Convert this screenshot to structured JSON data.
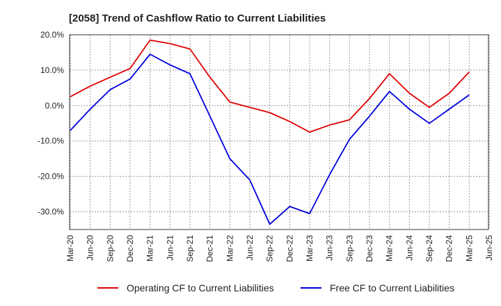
{
  "chart_data": {
    "type": "line",
    "title": "[2058]  Trend of Cashflow Ratio to Current Liabilities",
    "xlabel": "",
    "ylabel": "",
    "ylim": [
      -35,
      20
    ],
    "y_ticks": [
      20,
      10,
      0,
      -10,
      -20,
      -30
    ],
    "y_tick_labels": [
      "20.0%",
      "10.0%",
      "0.0%",
      "-10.0%",
      "-20.0%",
      "-30.0%"
    ],
    "x_tick_labels": [
      "Mar-20",
      "Jun-20",
      "Sep-20",
      "Dec-20",
      "Mar-21",
      "Jun-21",
      "Sep-21",
      "Dec-21",
      "Mar-22",
      "Jun-22",
      "Sep-22",
      "Dec-22",
      "Mar-23",
      "Jun-23",
      "Sep-23",
      "Dec-23",
      "Mar-24",
      "Jun-24",
      "Sep-24",
      "Dec-24",
      "Mar-25",
      "Jun-25"
    ],
    "x": [
      "Mar-20",
      "Jun-20",
      "Sep-20",
      "Dec-20",
      "Mar-21",
      "Jun-21",
      "Sep-21",
      "Dec-21",
      "Mar-22",
      "Jun-22",
      "Sep-22",
      "Dec-22",
      "Mar-23",
      "Jun-23",
      "Sep-23",
      "Dec-23",
      "Mar-24",
      "Jun-24",
      "Sep-24",
      "Dec-24",
      "Mar-25"
    ],
    "grid": true,
    "legend_position": "bottom",
    "series": [
      {
        "name": "Operating CF to Current Liabilities",
        "color": "#e00000",
        "values": [
          2.5,
          5.5,
          8.0,
          10.5,
          18.5,
          17.5,
          16.0,
          8.0,
          1.0,
          -0.5,
          -2.0,
          -4.5,
          -7.5,
          -5.5,
          -4.0,
          2.0,
          9.0,
          3.5,
          -0.5,
          3.5,
          9.5
        ]
      },
      {
        "name": "Free CF to Current Liabilities",
        "color": "#0000dd",
        "values": [
          -7.0,
          -1.0,
          4.5,
          7.5,
          14.5,
          11.5,
          9.0,
          -3.0,
          -15.0,
          -21.0,
          -33.5,
          -28.5,
          -30.5,
          -19.5,
          -9.5,
          -3.0,
          4.0,
          -1.0,
          -5.0,
          -1.0,
          3.0
        ]
      }
    ]
  }
}
